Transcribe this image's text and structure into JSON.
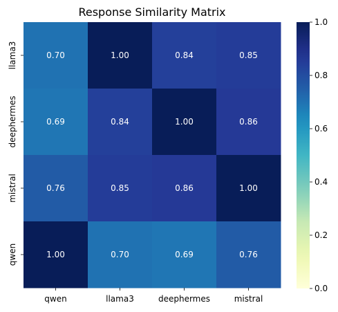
{
  "chart_data": {
    "type": "heatmap",
    "title": "Response Similarity Matrix",
    "x_categories": [
      "qwen",
      "llama3",
      "deephermes",
      "mistral"
    ],
    "y_categories": [
      "llama3",
      "deephermes",
      "mistral",
      "qwen"
    ],
    "values": [
      [
        0.7,
        1.0,
        0.84,
        0.85
      ],
      [
        0.69,
        0.84,
        1.0,
        0.86
      ],
      [
        0.76,
        0.85,
        0.86,
        1.0
      ],
      [
        1.0,
        0.7,
        0.69,
        0.76
      ]
    ],
    "value_labels": [
      [
        "0.70",
        "1.00",
        "0.84",
        "0.85"
      ],
      [
        "0.69",
        "0.84",
        "1.00",
        "0.86"
      ],
      [
        "0.76",
        "0.85",
        "0.86",
        "1.00"
      ],
      [
        "1.00",
        "0.70",
        "0.69",
        "0.76"
      ]
    ],
    "colorbar": {
      "range": [
        0,
        1
      ],
      "ticks": [
        0.0,
        0.2,
        0.4,
        0.6,
        0.8,
        1.0
      ],
      "tick_labels": [
        "0.0",
        "0.2",
        "0.4",
        "0.6",
        "0.8",
        "1.0"
      ]
    },
    "colormap": "YlGnBu"
  }
}
